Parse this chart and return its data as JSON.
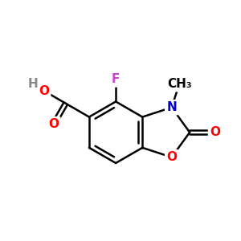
{
  "background_color": "#ffffff",
  "bond_color": "#000000",
  "bond_width": 1.8,
  "atom_colors": {
    "O": "#ff0000",
    "N": "#0000cc",
    "F": "#cc44cc",
    "H": "#888888",
    "C": "#000000"
  },
  "font_size": 11,
  "fig_size": [
    3.0,
    3.0
  ],
  "dpi": 100
}
